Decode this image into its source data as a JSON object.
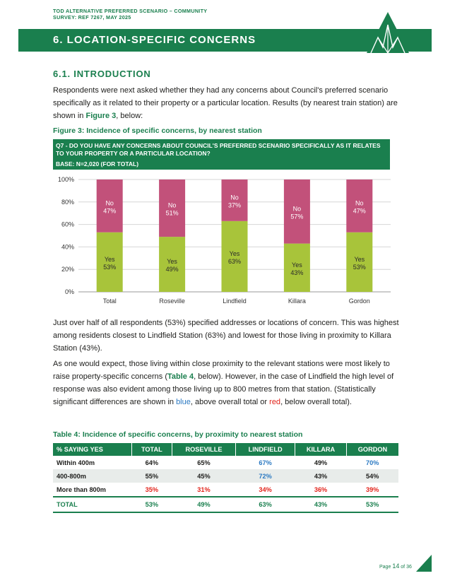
{
  "header": {
    "line1": "TOD ALTERNATIVE PREFERRED SCENARIO – COMMUNITY",
    "line2": "SURVEY: REF 7267, MAY 2025"
  },
  "banner": {
    "title": "6. LOCATION-SPECIFIC CONCERNS",
    "bg_color": "#1a7f4e"
  },
  "section": {
    "heading": "6.1. INTRODUCTION",
    "intro": {
      "before": "Respondents were next asked whether they had any concerns about Council's preferred scenario specifically as it related to their property or a particular location. Results (by nearest train station) are shown in ",
      "link": "Figure 3",
      "after": ", below:"
    }
  },
  "figure": {
    "caption": "Figure 3: Incidence of specific concerns, by nearest station",
    "question": "Q7 - DO YOU HAVE ANY CONCERNS ABOUT COUNCIL'S PREFERRED SCENARIO SPECIFICALLY AS IT RELATES TO YOUR PROPERTY OR A PARTICULAR LOCATION?",
    "base": "BASE: N=2,020 (FOR TOTAL)"
  },
  "chart_data": {
    "type": "bar",
    "stacked": true,
    "categories": [
      "Total",
      "Roseville",
      "Lindfield",
      "Killara",
      "Gordon"
    ],
    "series": [
      {
        "name": "Yes",
        "values": [
          53,
          49,
          63,
          43,
          53
        ],
        "color": "#a8c43a"
      },
      {
        "name": "No",
        "values": [
          47,
          51,
          37,
          57,
          47
        ],
        "color": "#c2517a"
      }
    ],
    "y_ticks": [
      "0%",
      "20%",
      "40%",
      "60%",
      "80%",
      "100%"
    ],
    "ylim": [
      0,
      100
    ],
    "grid": true,
    "legend": "none"
  },
  "body": {
    "p2": "Just over half of all respondents (53%) specified addresses or locations of concern. This was highest among residents closest to Lindfield Station (63%) and lowest for those living in proximity to Killara Station (43%).",
    "p3": {
      "a": "As one would expect, those living within close proximity to the relevant stations were most likely to raise property-specific concerns (",
      "link": "Table 4",
      "b": ", below). However, in the case of Lindfield the high level of response was also evident among those living up to 800 metres from that station. (Statistically significant differences are shown in ",
      "blue_word": "blue",
      "c": ", above overall total or ",
      "red_word": "red",
      "d": ", below overall total)."
    }
  },
  "table": {
    "caption": "Table 4: Incidence of specific concerns, by proximity to nearest station",
    "headers": [
      "% SAYING YES",
      "TOTAL",
      "ROSEVILLE",
      "LINDFIELD",
      "KILLARA",
      "GORDON"
    ],
    "rows": [
      {
        "label": "Within 400m",
        "cells": [
          {
            "v": "64%",
            "c": ""
          },
          {
            "v": "65%",
            "c": ""
          },
          {
            "v": "67%",
            "c": "blue"
          },
          {
            "v": "49%",
            "c": ""
          },
          {
            "v": "70%",
            "c": "blue"
          }
        ]
      },
      {
        "label": "400-800m",
        "cells": [
          {
            "v": "55%",
            "c": ""
          },
          {
            "v": "45%",
            "c": ""
          },
          {
            "v": "72%",
            "c": "blue"
          },
          {
            "v": "43%",
            "c": ""
          },
          {
            "v": "54%",
            "c": ""
          }
        ]
      },
      {
        "label": "More than 800m",
        "cells": [
          {
            "v": "35%",
            "c": "red"
          },
          {
            "v": "31%",
            "c": "red"
          },
          {
            "v": "34%",
            "c": "red"
          },
          {
            "v": "36%",
            "c": "red"
          },
          {
            "v": "39%",
            "c": "red"
          }
        ]
      }
    ],
    "total": {
      "label": "TOTAL",
      "values": [
        "53%",
        "49%",
        "63%",
        "43%",
        "53%"
      ]
    }
  },
  "footer": {
    "prefix": "Page",
    "page": "14",
    "suffix": "of 36"
  }
}
